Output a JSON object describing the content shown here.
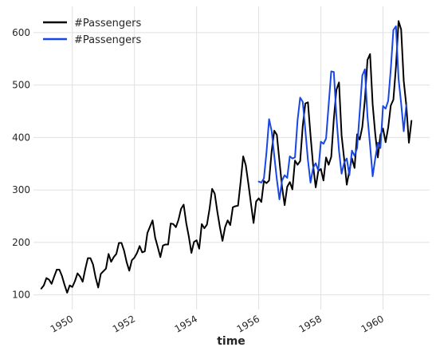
{
  "chart_data": {
    "type": "line",
    "title": "",
    "xlabel": "time",
    "ylabel": "",
    "xlim": [
      1948.75,
      1961.5
    ],
    "ylim": [
      72,
      650
    ],
    "x_ticks": [
      1950,
      1952,
      1954,
      1956,
      1958,
      1960
    ],
    "y_ticks": [
      100,
      200,
      300,
      400,
      500,
      600
    ],
    "grid": true,
    "legend": "top-left",
    "colors": {
      "actual": "#000000",
      "forecast": "#1947e6"
    },
    "start_year": 1949,
    "forecast_start_year": 1956,
    "series": [
      {
        "name": "#Passengers",
        "values": [
          112,
          118,
          132,
          129,
          121,
          135,
          148,
          148,
          136,
          119,
          104,
          118,
          115,
          126,
          141,
          135,
          125,
          149,
          170,
          170,
          158,
          133,
          114,
          140,
          145,
          150,
          178,
          163,
          172,
          178,
          199,
          199,
          184,
          162,
          146,
          166,
          171,
          180,
          193,
          181,
          183,
          218,
          230,
          242,
          209,
          191,
          172,
          194,
          196,
          196,
          236,
          235,
          229,
          243,
          264,
          272,
          237,
          211,
          180,
          201,
          204,
          188,
          235,
          227,
          234,
          264,
          302,
          293,
          259,
          229,
          203,
          229,
          242,
          233,
          267,
          269,
          270,
          315,
          364,
          347,
          312,
          274,
          237,
          278,
          284,
          277,
          317,
          313,
          318,
          374,
          413,
          405,
          355,
          306,
          271,
          306,
          315,
          301,
          356,
          348,
          355,
          422,
          465,
          467,
          404,
          347,
          305,
          336,
          340,
          318,
          362,
          348,
          363,
          435,
          491,
          505,
          404,
          359,
          310,
          337,
          360,
          342,
          406,
          396,
          420,
          472,
          548,
          559,
          463,
          407,
          362,
          405,
          417,
          391,
          419,
          461,
          472,
          535,
          622,
          606,
          508,
          461,
          390,
          432
        ]
      },
      {
        "name": "#Passengers",
        "values": [
          316,
          314,
          322,
          372,
          435,
          412,
          365,
          320,
          282,
          318,
          328,
          323,
          364,
          360,
          362,
          433,
          476,
          468,
          414,
          357,
          314,
          342,
          351,
          337,
          392,
          388,
          398,
          462,
          526,
          525,
          440,
          375,
          331,
          352,
          360,
          328,
          375,
          365,
          380,
          448,
          518,
          530,
          440,
          385,
          326,
          360,
          390,
          380,
          460,
          455,
          470,
          530,
          605,
          612,
          512,
          465,
          412,
          462
        ]
      }
    ]
  }
}
